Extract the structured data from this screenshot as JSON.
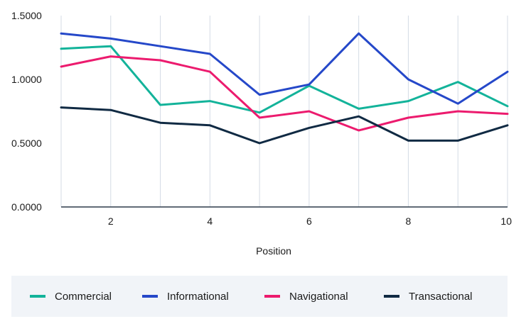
{
  "chart_data": {
    "type": "line",
    "xlabel": "Position",
    "ylabel": "",
    "x": [
      1,
      2,
      3,
      4,
      5,
      6,
      7,
      8,
      9,
      10
    ],
    "xlim": [
      1,
      10
    ],
    "xticks": [
      2,
      4,
      6,
      8,
      10
    ],
    "ylim": [
      0,
      1.5
    ],
    "yticks": [
      0,
      0.5,
      1.0,
      1.5
    ],
    "ytick_labels": [
      "0.0000",
      "0.5000",
      "1.0000",
      "1.5000"
    ],
    "grid": "vertical",
    "legend_position": "bottom",
    "series": [
      {
        "name": "Commercial",
        "color": "#13b39a",
        "values": [
          1.24,
          1.26,
          0.8,
          0.83,
          0.74,
          0.95,
          0.77,
          0.83,
          0.98,
          0.79
        ]
      },
      {
        "name": "Informational",
        "color": "#2548c9",
        "values": [
          1.36,
          1.32,
          1.26,
          1.2,
          0.88,
          0.96,
          1.36,
          1.0,
          0.81,
          1.06
        ]
      },
      {
        "name": "Navigational",
        "color": "#ec1b6e",
        "values": [
          1.1,
          1.18,
          1.15,
          1.06,
          0.7,
          0.75,
          0.6,
          0.7,
          0.75,
          0.73
        ]
      },
      {
        "name": "Transactional",
        "color": "#102a43",
        "values": [
          0.78,
          0.76,
          0.66,
          0.64,
          0.5,
          0.62,
          0.71,
          0.52,
          0.52,
          0.64
        ]
      }
    ]
  }
}
